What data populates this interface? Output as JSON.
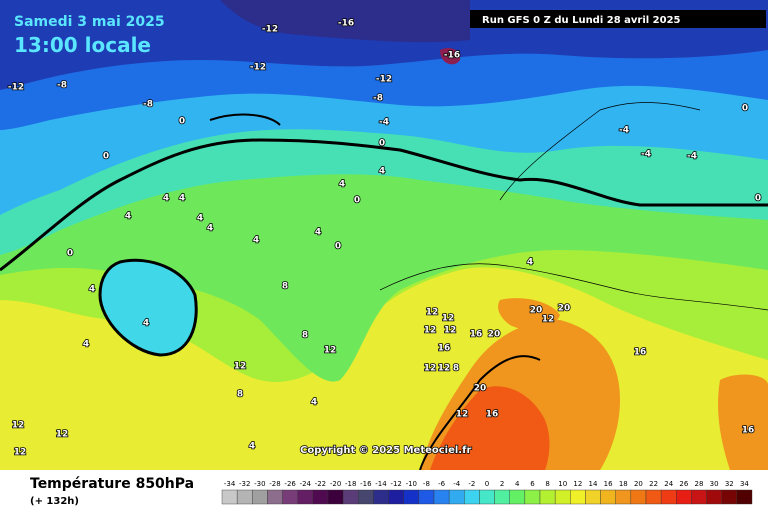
{
  "header": {
    "date": "Samedi 3 mai 2025",
    "time": "13:00 locale",
    "run": "Run GFS 0 Z du Lundi 28 avril 2025"
  },
  "map": {
    "contour_labels": [
      -12,
      -16,
      -16,
      -12,
      -8,
      -12,
      -8,
      -12,
      -8,
      0,
      0,
      -4,
      0,
      0,
      4,
      4,
      4,
      4,
      4,
      4,
      4,
      4,
      4,
      0,
      0,
      4,
      4,
      4,
      8,
      8,
      12,
      12,
      12,
      12,
      12,
      12,
      16,
      16,
      20,
      20,
      20,
      20,
      16,
      12,
      12,
      12,
      12,
      8,
      8,
      4,
      4,
      4,
      0,
      0,
      -4,
      -4,
      -4,
      12,
      12,
      12,
      16,
      16
    ],
    "copyright": "Copyright © 2025 Meteociel.fr"
  },
  "footer": {
    "title": "Température 850hPa",
    "lead": "(+ 132h)"
  },
  "scale": {
    "labels": [
      -34,
      -32,
      -30,
      -28,
      -26,
      -24,
      -22,
      -20,
      -18,
      -16,
      -14,
      -12,
      -10,
      -8,
      -6,
      -4,
      -2,
      0,
      2,
      4,
      6,
      8,
      10,
      12,
      14,
      16,
      18,
      20,
      22,
      24,
      26,
      28,
      30,
      32,
      34
    ],
    "colors": [
      "#c8c8c8",
      "#b4b4b4",
      "#a0a0a0",
      "#8c6e8c",
      "#783c78",
      "#641e64",
      "#500a50",
      "#3c003c",
      "#5a3c78",
      "#46466e",
      "#2d2d8c",
      "#1e1ea0",
      "#1432c8",
      "#1e5ae6",
      "#2882f0",
      "#32aaf0",
      "#3cd2f0",
      "#46e6c8",
      "#50f0a0",
      "#64f064",
      "#8cf046",
      "#b4f032",
      "#d2f028",
      "#f0f028",
      "#f0d228",
      "#f0b41e",
      "#f0961e",
      "#f07814",
      "#f05a14",
      "#f03c14",
      "#e61e14",
      "#c81414",
      "#a00a0a",
      "#780505",
      "#500000"
    ]
  }
}
